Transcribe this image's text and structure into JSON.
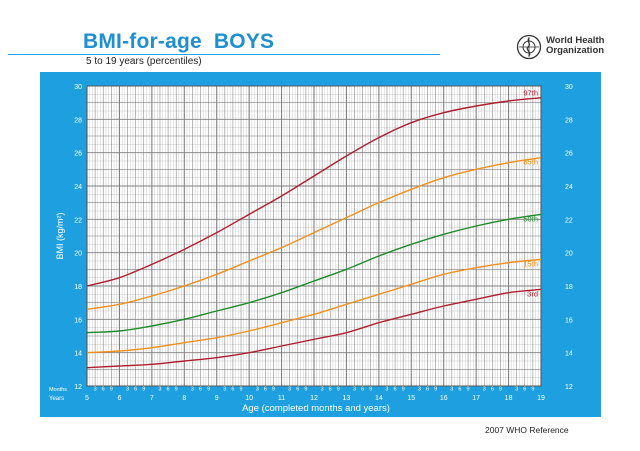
{
  "header": {
    "title": "BMI-for-age  BOYS",
    "subtitle": "5 to 19 years (percentiles)",
    "org_line1": "World Health",
    "org_line2": "Organization",
    "reference": "2007  WHO Reference"
  },
  "colors": {
    "panel": "#1ea0e0",
    "plot_bg": "#ffffff",
    "major_grid": "#7f7f7f",
    "minor_grid": "#c9c9c9",
    "p97": "#b01e2e",
    "p85": "#f0901c",
    "p50": "#1f8a2a",
    "p15": "#f0901c",
    "p3": "#b01e2e"
  },
  "chart_data": {
    "type": "line",
    "xlabel": "Age (completed months and years)",
    "ylabel": "BMI (kg/m²)",
    "xlim": [
      5,
      19
    ],
    "ylim": [
      12,
      30
    ],
    "y_ticks": [
      12,
      14,
      16,
      18,
      20,
      22,
      24,
      26,
      28,
      30
    ],
    "x_year_ticks": [
      "5",
      "6",
      "7",
      "8",
      "9",
      "10",
      "11",
      "12",
      "13",
      "14",
      "15",
      "16",
      "17",
      "18",
      "19"
    ],
    "month_tick_labels": [
      "3",
      "6",
      "9"
    ],
    "months_label": "Months",
    "years_label": "Years",
    "grid": true,
    "series": [
      {
        "name": "97th",
        "color_key": "p97",
        "x": [
          5,
          6,
          7,
          8,
          9,
          10,
          11,
          12,
          13,
          14,
          15,
          16,
          17,
          18,
          19
        ],
        "y": [
          18.0,
          18.5,
          19.3,
          20.2,
          21.2,
          22.3,
          23.4,
          24.6,
          25.8,
          26.9,
          27.8,
          28.4,
          28.8,
          29.1,
          29.3
        ]
      },
      {
        "name": "85th",
        "color_key": "p85",
        "x": [
          5,
          6,
          7,
          8,
          9,
          10,
          11,
          12,
          13,
          14,
          15,
          16,
          17,
          18,
          19
        ],
        "y": [
          16.6,
          16.9,
          17.4,
          18.0,
          18.7,
          19.5,
          20.3,
          21.2,
          22.1,
          23.0,
          23.8,
          24.5,
          25.0,
          25.4,
          25.7
        ]
      },
      {
        "name": "50th",
        "color_key": "p50",
        "x": [
          5,
          6,
          7,
          8,
          9,
          10,
          11,
          12,
          13,
          14,
          15,
          16,
          17,
          18,
          19
        ],
        "y": [
          15.2,
          15.3,
          15.6,
          16.0,
          16.5,
          17.0,
          17.6,
          18.3,
          19.0,
          19.8,
          20.5,
          21.1,
          21.6,
          22.0,
          22.3
        ]
      },
      {
        "name": "15th",
        "color_key": "p15",
        "x": [
          5,
          6,
          7,
          8,
          9,
          10,
          11,
          12,
          13,
          14,
          15,
          16,
          17,
          18,
          19
        ],
        "y": [
          14.0,
          14.1,
          14.3,
          14.6,
          14.9,
          15.3,
          15.8,
          16.3,
          16.9,
          17.5,
          18.1,
          18.7,
          19.1,
          19.4,
          19.6
        ]
      },
      {
        "name": "3rd",
        "color_key": "p3",
        "x": [
          5,
          6,
          7,
          8,
          9,
          10,
          11,
          12,
          13,
          14,
          15,
          16,
          17,
          18,
          19
        ],
        "y": [
          13.1,
          13.2,
          13.3,
          13.5,
          13.7,
          14.0,
          14.4,
          14.8,
          15.2,
          15.8,
          16.3,
          16.8,
          17.2,
          17.6,
          17.8
        ]
      }
    ]
  }
}
